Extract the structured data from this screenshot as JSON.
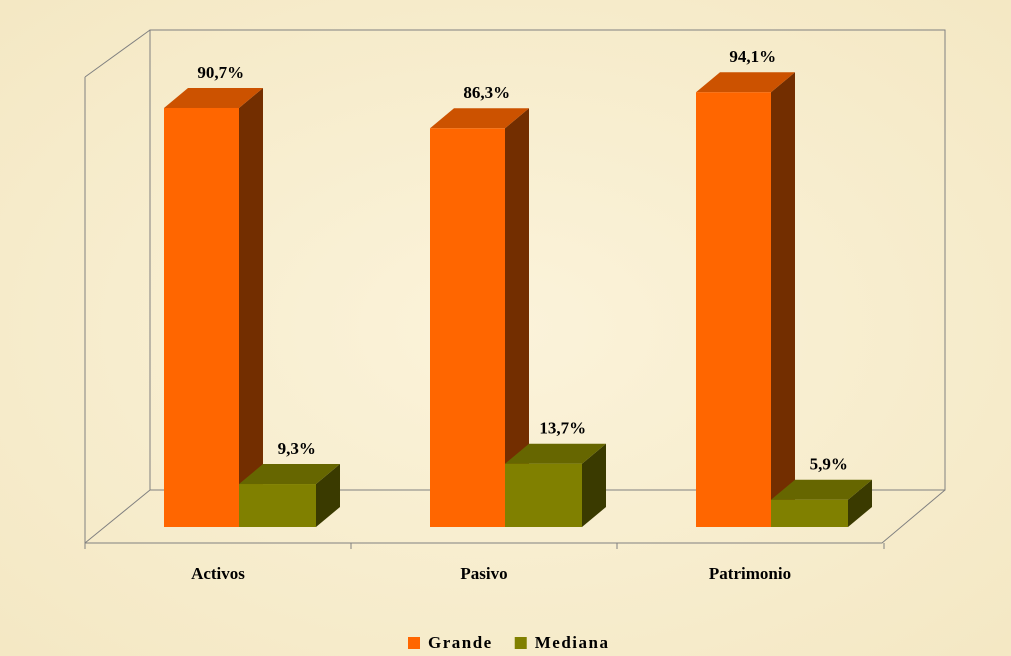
{
  "chart_data": {
    "type": "bar3d",
    "categories": [
      "Activos",
      "Pasivo",
      "Patrimonio"
    ],
    "series": [
      {
        "name": "Grande",
        "color": "#ff6600",
        "values": [
          90.7,
          86.3,
          94.1
        ],
        "value_labels": [
          "90,7%",
          "86,3%",
          "94,1%"
        ]
      },
      {
        "name": "Mediana",
        "color": "#808000",
        "values": [
          9.3,
          13.7,
          5.9
        ],
        "value_labels": [
          "9,3%",
          "13,7%",
          "5,9%"
        ]
      }
    ],
    "ylim": [
      0,
      100
    ],
    "legend": "bottom"
  }
}
